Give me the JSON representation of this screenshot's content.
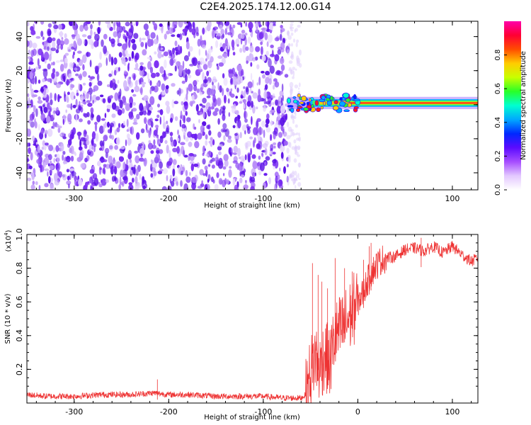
{
  "title": "C2E4.2025.174.12.00.G14",
  "colors": {
    "snr_line": "#ee3333",
    "spec_noise_light": "#d8c2fa",
    "spec_noise_dark": "#6a1cf0",
    "axis": "#000000",
    "background": "#ffffff"
  },
  "chart_data": [
    {
      "type": "heatmap",
      "name": "spectrogram",
      "xlabel": "Height of straight line (km)",
      "ylabel": "Frequency (Hz)",
      "xlim": [
        -350,
        127
      ],
      "ylim": [
        -50,
        49
      ],
      "xticks": [
        -300,
        -200,
        -100,
        0,
        100
      ],
      "xtick_labels": [
        "-300",
        "-200",
        "-100",
        "0",
        "100"
      ],
      "yticks": [
        -40,
        -20,
        0,
        20,
        40
      ],
      "ytick_labels": [
        "-40",
        "-20",
        "0",
        "20",
        "40"
      ],
      "grid": false,
      "noise_region_x": [
        -350,
        -74
      ],
      "signal_band": {
        "x": [
          -74,
          127
        ],
        "frequency_hz": 1,
        "half_width_hz": 2,
        "description": ""
      },
      "colorbar": {
        "label": "Normalized spectral amplitude",
        "range": [
          0.0,
          1.0
        ],
        "ticks": [
          0.0,
          0.2,
          0.4,
          0.6,
          0.8
        ],
        "tick_labels": [
          "0.0",
          "0.2",
          "0.4",
          "0.6",
          "0.8"
        ],
        "colormap": [
          "#ffffff",
          "#e3c8ff",
          "#a64dff",
          "#5b0bff",
          "#0028ff",
          "#00a8ff",
          "#00ffd0",
          "#28ff28",
          "#c8ff00",
          "#ffcc00",
          "#ff4d00",
          "#ff0033",
          "#ff00aa"
        ]
      }
    },
    {
      "type": "line",
      "name": "snr",
      "xlabel": "Height of straight line (km)",
      "ylabel": "SNR (10 * v/v)",
      "y_multiplier_label": "(x10",
      "y_multiplier_exp": "4",
      "y_multiplier_close": ")",
      "xlim": [
        -350,
        127
      ],
      "ylim": [
        0,
        1.0
      ],
      "xticks": [
        -300,
        -200,
        -100,
        0,
        100
      ],
      "xtick_labels": [
        "-300",
        "-200",
        "-100",
        "0",
        "100"
      ],
      "yticks": [
        0.2,
        0.4,
        0.6,
        0.8,
        1.0
      ],
      "ytick_labels": [
        "0.2",
        "0.4",
        "0.6",
        "0.8",
        "1.0"
      ],
      "grid": false,
      "series": [
        {
          "x": [
            -350,
            -330,
            -300,
            -270,
            -240,
            -215,
            -200,
            -180,
            -150,
            -120,
            -100,
            -80,
            -60,
            -55,
            -50,
            -45,
            -40,
            -35,
            -30,
            -25,
            -20,
            -15,
            -10,
            -5,
            0,
            5,
            10,
            15,
            20,
            25,
            30,
            40,
            50,
            60,
            70,
            80,
            90,
            100,
            110,
            120,
            127
          ],
          "y": [
            0.05,
            0.04,
            0.04,
            0.05,
            0.05,
            0.06,
            0.05,
            0.05,
            0.04,
            0.04,
            0.04,
            0.03,
            0.03,
            0.05,
            0.18,
            0.28,
            0.2,
            0.3,
            0.22,
            0.38,
            0.42,
            0.45,
            0.5,
            0.55,
            0.6,
            0.65,
            0.72,
            0.78,
            0.82,
            0.85,
            0.86,
            0.87,
            0.91,
            0.92,
            0.9,
            0.93,
            0.89,
            0.93,
            0.88,
            0.84,
            0.86
          ],
          "spikes": [
            {
              "x": -48,
              "y": 0.83
            },
            {
              "x": -42,
              "y": 0.76
            },
            {
              "x": -38,
              "y": 0.72
            },
            {
              "x": -32,
              "y": 0.68
            },
            {
              "x": -24,
              "y": 0.86
            },
            {
              "x": -14,
              "y": 0.8
            },
            {
              "x": -6,
              "y": 0.78
            },
            {
              "x": 6,
              "y": 0.85
            },
            {
              "x": 12,
              "y": 0.93
            },
            {
              "x": 14,
              "y": 0.95
            },
            {
              "x": 67,
              "y": 0.98
            },
            {
              "x": -212,
              "y": 0.14
            }
          ]
        }
      ]
    }
  ]
}
